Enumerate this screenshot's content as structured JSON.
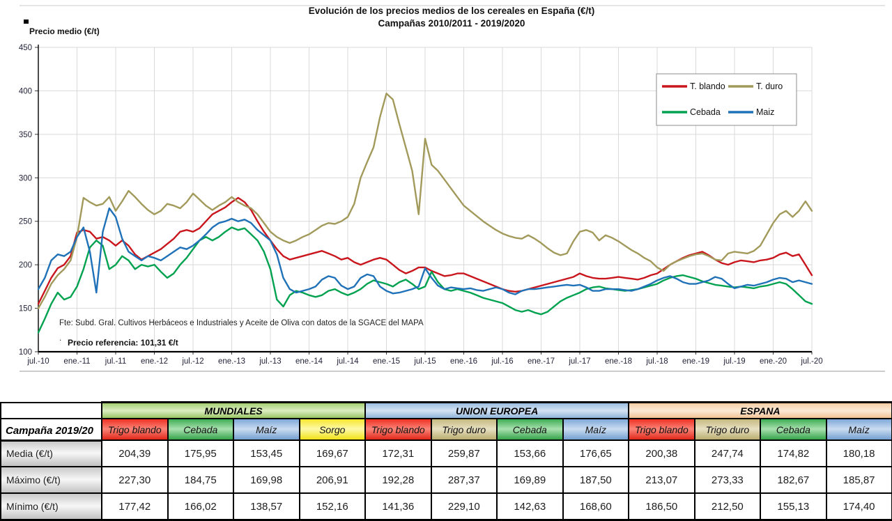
{
  "chart_data": {
    "type": "line",
    "title": "Evolución de los precios medios de los cereales en España (€/t)",
    "subtitle": "Campañas 2010/2011 - 2019/2020",
    "ylabel": "Precio medio (€/t)",
    "xlabel": "",
    "ylim": [
      100,
      450
    ],
    "y_ticks": [
      450,
      400,
      350,
      300,
      250,
      200,
      150,
      100
    ],
    "grid": true,
    "legend_position": "top-right",
    "x_start": "jul-2010",
    "x_step_months": 1,
    "x_tick_every_months": 6,
    "x_tick_labels": [
      "jul.-10",
      "ene.-11",
      "jul.-11",
      "ene.-12",
      "jul.-12",
      "ene.-13",
      "jul.-13",
      "ene.-14",
      "jul.-14",
      "ene.-15",
      "jul.-15",
      "ene.-16",
      "jul.-16",
      "ene.-17",
      "jul.-17",
      "ene.-18",
      "jul.-18",
      "ene.-19",
      "jul.-19",
      "ene.-20",
      "jul.-20"
    ],
    "source_note": "Fte: Subd. Gral. Cultivos Herbáceos e Industriales y Aceite de Oliva con datos de la SGACE del MAPA",
    "dot_note": ".",
    "reference_note": "Precio referencia: 101,31 €/t",
    "legend": [
      {
        "label": "T. blando",
        "color": "#c9161d"
      },
      {
        "label": "T. duro",
        "color": "#a29a5b"
      },
      {
        "label": "Cebada",
        "color": "#00a250"
      },
      {
        "label": "Maiz",
        "color": "#1f71b8"
      }
    ],
    "series": [
      {
        "name": "T. blando",
        "color": "#c9161d",
        "values": [
          155,
          170,
          185,
          196,
          200,
          210,
          237,
          240,
          238,
          230,
          232,
          228,
          222,
          228,
          222,
          212,
          206,
          210,
          214,
          218,
          224,
          230,
          238,
          240,
          238,
          242,
          250,
          258,
          262,
          266,
          272,
          277,
          272,
          263,
          250,
          238,
          228,
          218,
          210,
          206,
          208,
          210,
          212,
          214,
          216,
          213,
          210,
          206,
          208,
          203,
          200,
          203,
          206,
          208,
          206,
          200,
          194,
          190,
          193,
          197,
          197,
          193,
          190,
          187,
          188,
          190,
          190,
          187,
          184,
          181,
          178,
          175,
          172,
          170,
          169,
          170,
          172,
          174,
          176,
          178,
          180,
          182,
          184,
          186,
          190,
          187,
          185,
          184,
          184,
          185,
          186,
          185,
          184,
          183,
          185,
          188,
          190,
          195,
          200,
          204,
          208,
          211,
          213,
          215,
          211,
          206,
          202,
          200,
          203,
          205,
          204,
          203,
          205,
          206,
          208,
          212,
          214,
          210,
          212,
          200,
          188
        ]
      },
      {
        "name": "T. duro",
        "color": "#a29a5b",
        "values": [
          150,
          163,
          178,
          188,
          195,
          205,
          232,
          277,
          272,
          268,
          270,
          278,
          262,
          273,
          285,
          278,
          270,
          263,
          258,
          262,
          270,
          268,
          265,
          272,
          282,
          275,
          268,
          263,
          268,
          272,
          278,
          272,
          268,
          265,
          258,
          248,
          238,
          232,
          228,
          225,
          228,
          232,
          235,
          240,
          245,
          248,
          247,
          250,
          255,
          270,
          300,
          318,
          335,
          370,
          397,
          390,
          362,
          335,
          308,
          258,
          345,
          315,
          308,
          298,
          288,
          278,
          268,
          262,
          256,
          250,
          245,
          240,
          236,
          233,
          231,
          230,
          234,
          230,
          225,
          219,
          214,
          211,
          213,
          227,
          238,
          240,
          237,
          228,
          234,
          231,
          227,
          222,
          217,
          213,
          208,
          204,
          197,
          193,
          200,
          204,
          207,
          210,
          212,
          213,
          210,
          206,
          205,
          213,
          215,
          214,
          213,
          216,
          222,
          235,
          248,
          258,
          262,
          255,
          262,
          273,
          262
        ]
      },
      {
        "name": "Cebada",
        "color": "#00a250",
        "values": [
          122,
          138,
          155,
          168,
          160,
          163,
          175,
          195,
          220,
          228,
          222,
          195,
          200,
          210,
          205,
          195,
          200,
          198,
          200,
          192,
          185,
          190,
          200,
          208,
          218,
          228,
          232,
          228,
          232,
          238,
          243,
          240,
          242,
          235,
          228,
          215,
          195,
          160,
          152,
          165,
          170,
          168,
          165,
          163,
          165,
          170,
          172,
          168,
          165,
          168,
          172,
          178,
          182,
          180,
          178,
          175,
          180,
          183,
          178,
          172,
          175,
          192,
          180,
          172,
          170,
          172,
          170,
          168,
          165,
          162,
          160,
          158,
          156,
          152,
          148,
          146,
          148,
          145,
          143,
          146,
          152,
          158,
          162,
          165,
          168,
          172,
          174,
          175,
          173,
          172,
          171,
          170,
          171,
          172,
          174,
          176,
          178,
          182,
          185,
          187,
          188,
          186,
          184,
          181,
          179,
          177,
          176,
          175,
          174,
          175,
          174,
          173,
          175,
          176,
          178,
          180,
          178,
          172,
          165,
          158,
          155
        ]
      },
      {
        "name": "Maíz",
        "color": "#1f71b8",
        "values": [
          172,
          185,
          205,
          212,
          210,
          215,
          232,
          243,
          215,
          168,
          238,
          265,
          255,
          230,
          215,
          210,
          205,
          210,
          208,
          205,
          210,
          215,
          220,
          218,
          222,
          228,
          235,
          243,
          248,
          250,
          253,
          250,
          252,
          248,
          240,
          234,
          228,
          212,
          185,
          172,
          168,
          170,
          172,
          175,
          183,
          187,
          185,
          176,
          172,
          175,
          185,
          189,
          187,
          175,
          170,
          167,
          168,
          170,
          172,
          175,
          196,
          185,
          176,
          172,
          174,
          173,
          172,
          173,
          171,
          170,
          172,
          174,
          172,
          168,
          166,
          170,
          172,
          172,
          173,
          174,
          175,
          176,
          177,
          176,
          177,
          174,
          170,
          170,
          172,
          172,
          172,
          171,
          170,
          172,
          175,
          178,
          182,
          185,
          187,
          184,
          180,
          178,
          178,
          180,
          182,
          186,
          184,
          178,
          173,
          175,
          177,
          176,
          178,
          180,
          183,
          185,
          184,
          180,
          182,
          180,
          178
        ]
      }
    ]
  },
  "table": {
    "corner_label": "Campaña 2019/20",
    "palette": {
      "group_green": [
        "#a8d077",
        "#dcedc2",
        "#96c35f"
      ],
      "group_blue": [
        "#9fbfe2",
        "#d4e3f3",
        "#8cb2d9"
      ],
      "group_peach": [
        "#f5cfa8",
        "#fbe9d6",
        "#f0c091"
      ],
      "red": [
        "#ee3124",
        "#fb8578",
        "#e0281a"
      ],
      "tan": [
        "#c6b980",
        "#e7e0c2",
        "#b9ab6e"
      ],
      "green": [
        "#3fae55",
        "#a9e0af",
        "#35a44b"
      ],
      "blue": [
        "#7ea8d8",
        "#cbdcf1",
        "#739fd0"
      ],
      "yellow": [
        "#f8e62e",
        "#fdf9a8",
        "#f2e215"
      ],
      "gray": [
        "#c9c9c9",
        "#f7f7f7",
        "#c2c2c2"
      ]
    },
    "groups": [
      {
        "label": "MUNDIALES",
        "fill": "group_green",
        "columns": [
          {
            "label": "Trigo blando",
            "fill": "red"
          },
          {
            "label": "Cebada",
            "fill": "green"
          },
          {
            "label": "Maíz",
            "fill": "blue"
          },
          {
            "label": "Sorgo",
            "fill": "yellow"
          }
        ]
      },
      {
        "label": "UNION EUROPEA",
        "fill": "group_blue",
        "columns": [
          {
            "label": "Trigo blando",
            "fill": "red"
          },
          {
            "label": "Trigo duro",
            "fill": "tan"
          },
          {
            "label": "Cebada",
            "fill": "green"
          },
          {
            "label": "Maíz",
            "fill": "blue"
          }
        ]
      },
      {
        "label": "ESPANA",
        "fill": "group_peach",
        "columns": [
          {
            "label": "Trigo blando",
            "fill": "red"
          },
          {
            "label": "Trigo duro",
            "fill": "tan"
          },
          {
            "label": "Cebada",
            "fill": "green"
          },
          {
            "label": "Maíz",
            "fill": "blue"
          }
        ]
      }
    ],
    "rows": [
      {
        "label": "Media (€/t)",
        "values": [
          "204,39",
          "175,95",
          "153,45",
          "169,67",
          "172,31",
          "259,87",
          "153,66",
          "176,65",
          "200,38",
          "247,74",
          "174,82",
          "180,18"
        ]
      },
      {
        "label": "Máximo (€/t)",
        "values": [
          "227,30",
          "184,75",
          "169,98",
          "206,91",
          "192,28",
          "287,37",
          "169,89",
          "187,50",
          "213,07",
          "273,33",
          "182,67",
          "185,87"
        ]
      },
      {
        "label": "Mínimo (€/t)",
        "values": [
          "177,42",
          "166,02",
          "138,57",
          "152,16",
          "141,36",
          "229,10",
          "142,63",
          "168,60",
          "186,50",
          "212,50",
          "155,13",
          "174,40"
        ]
      }
    ]
  }
}
